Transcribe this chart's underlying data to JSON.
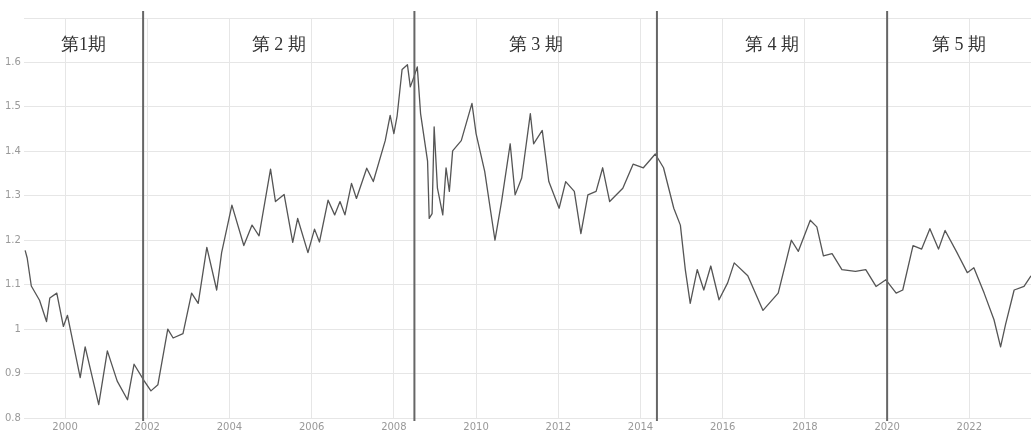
{
  "chart_data": {
    "type": "line",
    "color": "#555555",
    "marker": "none",
    "grid": true,
    "x": [
      1999.03,
      1999.08,
      1999.18,
      1999.38,
      1999.55,
      1999.63,
      1999.8,
      1999.96,
      2000.06,
      2000.37,
      2000.49,
      2000.82,
      2001.03,
      2001.27,
      2001.52,
      2001.68,
      2001.93,
      2002.09,
      2002.26,
      2002.5,
      2002.63,
      2002.87,
      2003.08,
      2003.24,
      2003.45,
      2003.69,
      2003.81,
      2004.06,
      2004.35,
      2004.55,
      2004.72,
      2005.0,
      2005.12,
      2005.33,
      2005.54,
      2005.66,
      2005.91,
      2006.07,
      2006.19,
      2006.4,
      2006.56,
      2006.69,
      2006.81,
      2006.97,
      2007.09,
      2007.34,
      2007.5,
      2007.79,
      2007.91,
      2008.0,
      2008.08,
      2008.2,
      2008.33,
      2008.4,
      2008.49,
      2008.57,
      2008.65,
      2008.82,
      2008.86,
      2008.93,
      2008.98,
      2009.06,
      2009.19,
      2009.27,
      2009.35,
      2009.43,
      2009.64,
      2009.9,
      2010.0,
      2010.21,
      2010.46,
      2010.62,
      2010.83,
      2010.95,
      2011.11,
      2011.32,
      2011.4,
      2011.61,
      2011.77,
      2012.02,
      2012.18,
      2012.39,
      2012.55,
      2012.72,
      2012.92,
      2013.08,
      2013.25,
      2013.57,
      2013.82,
      2014.07,
      2014.36,
      2014.56,
      2014.81,
      2014.97,
      2015.09,
      2015.21,
      2015.38,
      2015.54,
      2015.71,
      2015.91,
      2016.12,
      2016.28,
      2016.61,
      2016.98,
      2017.35,
      2017.67,
      2017.84,
      2018.13,
      2018.29,
      2018.45,
      2018.66,
      2018.9,
      2019.23,
      2019.48,
      2019.73,
      2019.97,
      2020.22,
      2020.38,
      2020.63,
      2020.84,
      2021.04,
      2021.25,
      2021.41,
      2021.7,
      2021.95,
      2022.11,
      2022.36,
      2022.6,
      2022.76,
      2022.88,
      2023.09,
      2023.33,
      2023.5
    ],
    "values": [
      1.177,
      1.16,
      1.097,
      1.065,
      1.017,
      1.07,
      1.081,
      1.006,
      1.031,
      0.891,
      0.96,
      0.83,
      0.951,
      0.883,
      0.841,
      0.921,
      0.883,
      0.861,
      0.875,
      1.0,
      0.98,
      0.99,
      1.081,
      1.058,
      1.184,
      1.088,
      1.172,
      1.279,
      1.188,
      1.234,
      1.21,
      1.36,
      1.287,
      1.303,
      1.195,
      1.249,
      1.172,
      1.225,
      1.196,
      1.29,
      1.257,
      1.287,
      1.257,
      1.328,
      1.294,
      1.362,
      1.332,
      1.424,
      1.481,
      1.44,
      1.48,
      1.584,
      1.595,
      1.545,
      1.568,
      1.59,
      1.485,
      1.378,
      1.249,
      1.26,
      1.455,
      1.317,
      1.257,
      1.363,
      1.31,
      1.401,
      1.424,
      1.508,
      1.44,
      1.355,
      1.2,
      1.287,
      1.417,
      1.302,
      1.34,
      1.485,
      1.417,
      1.447,
      1.332,
      1.272,
      1.332,
      1.31,
      1.215,
      1.302,
      1.31,
      1.363,
      1.287,
      1.317,
      1.371,
      1.363,
      1.394,
      1.363,
      1.272,
      1.234,
      1.134,
      1.058,
      1.134,
      1.088,
      1.142,
      1.066,
      1.104,
      1.149,
      1.12,
      1.042,
      1.081,
      1.2,
      1.175,
      1.245,
      1.23,
      1.165,
      1.17,
      1.134,
      1.13,
      1.134,
      1.096,
      1.111,
      1.081,
      1.088,
      1.188,
      1.18,
      1.226,
      1.18,
      1.222,
      1.172,
      1.127,
      1.138,
      1.081,
      1.021,
      0.96,
      1.01,
      1.088,
      1.096,
      1.12
    ],
    "xlim": [
      1999.0,
      2023.5
    ],
    "xticks": [
      2000,
      2002,
      2004,
      2006,
      2008,
      2010,
      2012,
      2014,
      2016,
      2018,
      2020,
      2022
    ],
    "ylim": [
      0.8,
      1.7
    ],
    "yticks": [
      0.8,
      0.9,
      1.0,
      1.1,
      1.2,
      1.3,
      1.4,
      1.5,
      1.6,
      {
        "value": 1.7,
        "label": null
      }
    ],
    "ref_lines": [
      {
        "axis": "x",
        "value": 2001.9,
        "color": "#666666"
      },
      {
        "axis": "x",
        "value": 2008.5,
        "color": "#666666"
      },
      {
        "axis": "x",
        "value": 2014.4,
        "color": "#666666"
      },
      {
        "axis": "x",
        "value": 2020.0,
        "color": "#666666"
      }
    ],
    "annotations": [
      "第1期",
      "第 2 期",
      "第 3 期",
      "第 4 期",
      "第 5 期"
    ]
  }
}
